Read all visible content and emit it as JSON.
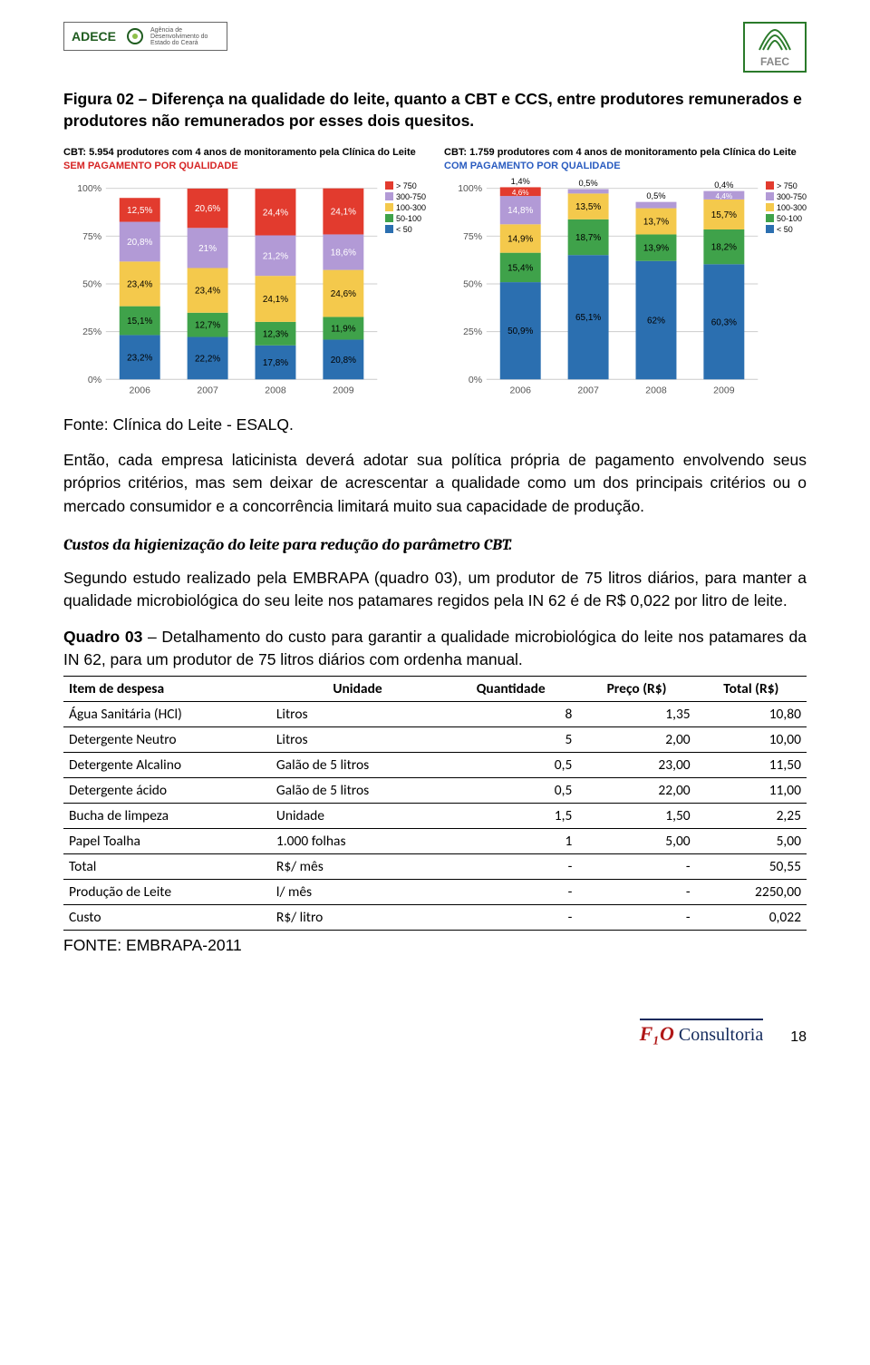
{
  "header": {
    "logo_left_tag": "ADECE",
    "logo_left_sub": "Agência de Desenvolvimento do Estado do Ceará",
    "logo_right_label": "FAEC"
  },
  "figure_title": "Figura 02 – Diferença na qualidade do leite, quanto a CBT e CCS, entre produtores remunerados e produtores não remunerados por esses dois quesitos.",
  "charts": {
    "axis_ticks": [
      "0%",
      "25%",
      "50%",
      "75%",
      "100%"
    ],
    "legend": [
      {
        "label": "> 750",
        "color": "#e23b2e"
      },
      {
        "label": "300-750",
        "color": "#b29ad6"
      },
      {
        "label": "100-300",
        "color": "#f4c94c"
      },
      {
        "label": "50-100",
        "color": "#3fa24a"
      },
      {
        "label": "< 50",
        "color": "#2b6fb0"
      }
    ],
    "left": {
      "caption_pre": "CBT: 5.954 produtores com 4 anos de monitoramento pela Clínica do Leite ",
      "caption_em": "SEM PAGAMENTO POR QUALIDADE",
      "years": [
        "2006",
        "2007",
        "2008",
        "2009"
      ],
      "series": [
        {
          "year": "2006",
          "segs": [
            {
              "v": 23.2,
              "c": "#2b6fb0",
              "lbl": "23,2%"
            },
            {
              "v": 15.1,
              "c": "#3fa24a",
              "lbl": "15,1%"
            },
            {
              "v": 23.4,
              "c": "#f4c94c",
              "lbl": "23,4%"
            },
            {
              "v": 20.8,
              "c": "#b29ad6",
              "lbl": "20,8%",
              "fg": "#fff"
            },
            {
              "v": 12.5,
              "c": "#e23b2e",
              "lbl": "12,5%",
              "fg": "#fff"
            }
          ]
        },
        {
          "year": "2007",
          "segs": [
            {
              "v": 22.2,
              "c": "#2b6fb0",
              "lbl": "22,2%"
            },
            {
              "v": 12.7,
              "c": "#3fa24a",
              "lbl": "12,7%"
            },
            {
              "v": 23.4,
              "c": "#f4c94c",
              "lbl": "23,4%"
            },
            {
              "v": 21.0,
              "c": "#b29ad6",
              "lbl": "21%",
              "fg": "#fff"
            },
            {
              "v": 20.6,
              "c": "#e23b2e",
              "lbl": "20,6%",
              "fg": "#fff"
            }
          ]
        },
        {
          "year": "2008",
          "segs": [
            {
              "v": 17.8,
              "c": "#2b6fb0",
              "lbl": "17,8%"
            },
            {
              "v": 12.3,
              "c": "#3fa24a",
              "lbl": "12,3%"
            },
            {
              "v": 24.1,
              "c": "#f4c94c",
              "lbl": "24,1%"
            },
            {
              "v": 21.2,
              "c": "#b29ad6",
              "lbl": "21,2%",
              "fg": "#fff"
            },
            {
              "v": 24.4,
              "c": "#e23b2e",
              "lbl": "24,4%",
              "fg": "#fff"
            }
          ]
        },
        {
          "year": "2009",
          "segs": [
            {
              "v": 20.8,
              "c": "#2b6fb0",
              "lbl": "20,8%"
            },
            {
              "v": 11.9,
              "c": "#3fa24a",
              "lbl": "11,9%"
            },
            {
              "v": 24.6,
              "c": "#f4c94c",
              "lbl": "24,6%"
            },
            {
              "v": 18.6,
              "c": "#b29ad6",
              "lbl": "18,6%",
              "fg": "#fff"
            },
            {
              "v": 24.1,
              "c": "#e23b2e",
              "lbl": "24,1%",
              "fg": "#fff"
            }
          ]
        }
      ]
    },
    "right": {
      "caption_pre": "CBT: 1.759 produtores com 4 anos de monitoramento pela Clínica do Leite ",
      "caption_em": "COM PAGAMENTO POR QUALIDADE",
      "years": [
        "2006",
        "2007",
        "2008",
        "2009"
      ],
      "series": [
        {
          "year": "2006",
          "segs": [
            {
              "v": 50.9,
              "c": "#2b6fb0",
              "lbl": "50,9%"
            },
            {
              "v": 15.4,
              "c": "#3fa24a",
              "lbl": "15,4%"
            },
            {
              "v": 14.9,
              "c": "#f4c94c",
              "lbl": "14,9%"
            },
            {
              "v": 14.8,
              "c": "#b29ad6",
              "lbl": "14,8%",
              "fg": "#fff"
            },
            {
              "v": 4.6,
              "c": "#e23b2e",
              "lbl": "4,6%",
              "fg": "#fff",
              "sm": true
            },
            {
              "v": 0,
              "c": "#e23b2e",
              "lbl": "1,4%",
              "above": true
            }
          ]
        },
        {
          "year": "2007",
          "segs": [
            {
              "v": 65.1,
              "c": "#2b6fb0",
              "lbl": "65,1%"
            },
            {
              "v": 18.7,
              "c": "#3fa24a",
              "lbl": "18,7%"
            },
            {
              "v": 13.5,
              "c": "#f4c94c",
              "lbl": "13,5%"
            },
            {
              "v": 2.3,
              "c": "#b29ad6",
              "lbl": "2,3%",
              "fg": "#fff",
              "sm": true
            },
            {
              "v": 0,
              "c": "#e23b2e",
              "lbl": "0,5%",
              "above": true
            }
          ]
        },
        {
          "year": "2008",
          "segs": [
            {
              "v": 62.0,
              "c": "#2b6fb0",
              "lbl": "62%"
            },
            {
              "v": 13.9,
              "c": "#3fa24a",
              "lbl": "13,9%"
            },
            {
              "v": 13.7,
              "c": "#f4c94c",
              "lbl": "13,7%"
            },
            {
              "v": 3.3,
              "c": "#b29ad6",
              "lbl": "3,3%",
              "fg": "#fff",
              "sm": true
            },
            {
              "v": 0,
              "c": "#e23b2e",
              "lbl": "0,5%",
              "above": true
            }
          ]
        },
        {
          "year": "2009",
          "segs": [
            {
              "v": 60.3,
              "c": "#2b6fb0",
              "lbl": "60,3%"
            },
            {
              "v": 18.2,
              "c": "#3fa24a",
              "lbl": "18,2%"
            },
            {
              "v": 15.7,
              "c": "#f4c94c",
              "lbl": "15,7%"
            },
            {
              "v": 4.4,
              "c": "#b29ad6",
              "lbl": "4,4%",
              "fg": "#fff",
              "sm": true
            },
            {
              "v": 0,
              "c": "#e23b2e",
              "lbl": "0,4%",
              "above": true
            }
          ]
        }
      ]
    }
  },
  "figure_source": "Fonte: Clínica do Leite - ESALQ.",
  "para1": "Então, cada empresa laticinista deverá adotar sua política própria de pagamento envolvendo seus próprios critérios, mas sem deixar de acrescentar a qualidade como um dos principais critérios ou o mercado consumidor e a concorrência limitará muito sua capacidade de produção.",
  "subhead": "Custos da higienização do leite para redução do parâmetro CBT.",
  "para2": "Segundo estudo realizado pela EMBRAPA (quadro 03), um produtor de 75 litros diários, para manter a qualidade microbiológica do seu leite nos patamares regidos pela IN 62 é de R$ 0,022 por litro de leite.",
  "quadro_title": "Quadro 03 – Detalhamento do custo para garantir a qualidade microbiológica do leite nos patamares da IN 62, para um produtor de 75 litros diários com ordenha manual.",
  "quadro_title_bold": "Quadro 03",
  "table": {
    "columns": [
      "Item de despesa",
      "Unidade",
      "Quantidade",
      "Preço (R$)",
      "Total (R$)"
    ],
    "rows": [
      [
        "Água Sanitária (HCl)",
        "Litros",
        "8",
        "1,35",
        "10,80"
      ],
      [
        "Detergente Neutro",
        "Litros",
        "5",
        "2,00",
        "10,00"
      ],
      [
        "Detergente Alcalino",
        "Galão de 5 litros",
        "0,5",
        "23,00",
        "11,50"
      ],
      [
        "Detergente ácido",
        "Galão de 5 litros",
        "0,5",
        "22,00",
        "11,00"
      ],
      [
        "Bucha de limpeza",
        "Unidade",
        "1,5",
        "1,50",
        "2,25"
      ],
      [
        "Papel Toalha",
        "1.000 folhas",
        "1",
        "5,00",
        "5,00"
      ],
      [
        "Total",
        "R$/ mês",
        "-",
        "-",
        "50,55"
      ],
      [
        "Produção de Leite",
        "l/ mês",
        "-",
        "-",
        "2250,00"
      ],
      [
        "Custo",
        "R$/ litro",
        "-",
        "-",
        "0,022"
      ]
    ]
  },
  "table_source": "FONTE: EMBRAPA-2011",
  "footer": {
    "logo_big": "F₁O",
    "logo_txt": " Consultoria",
    "page": "18"
  }
}
